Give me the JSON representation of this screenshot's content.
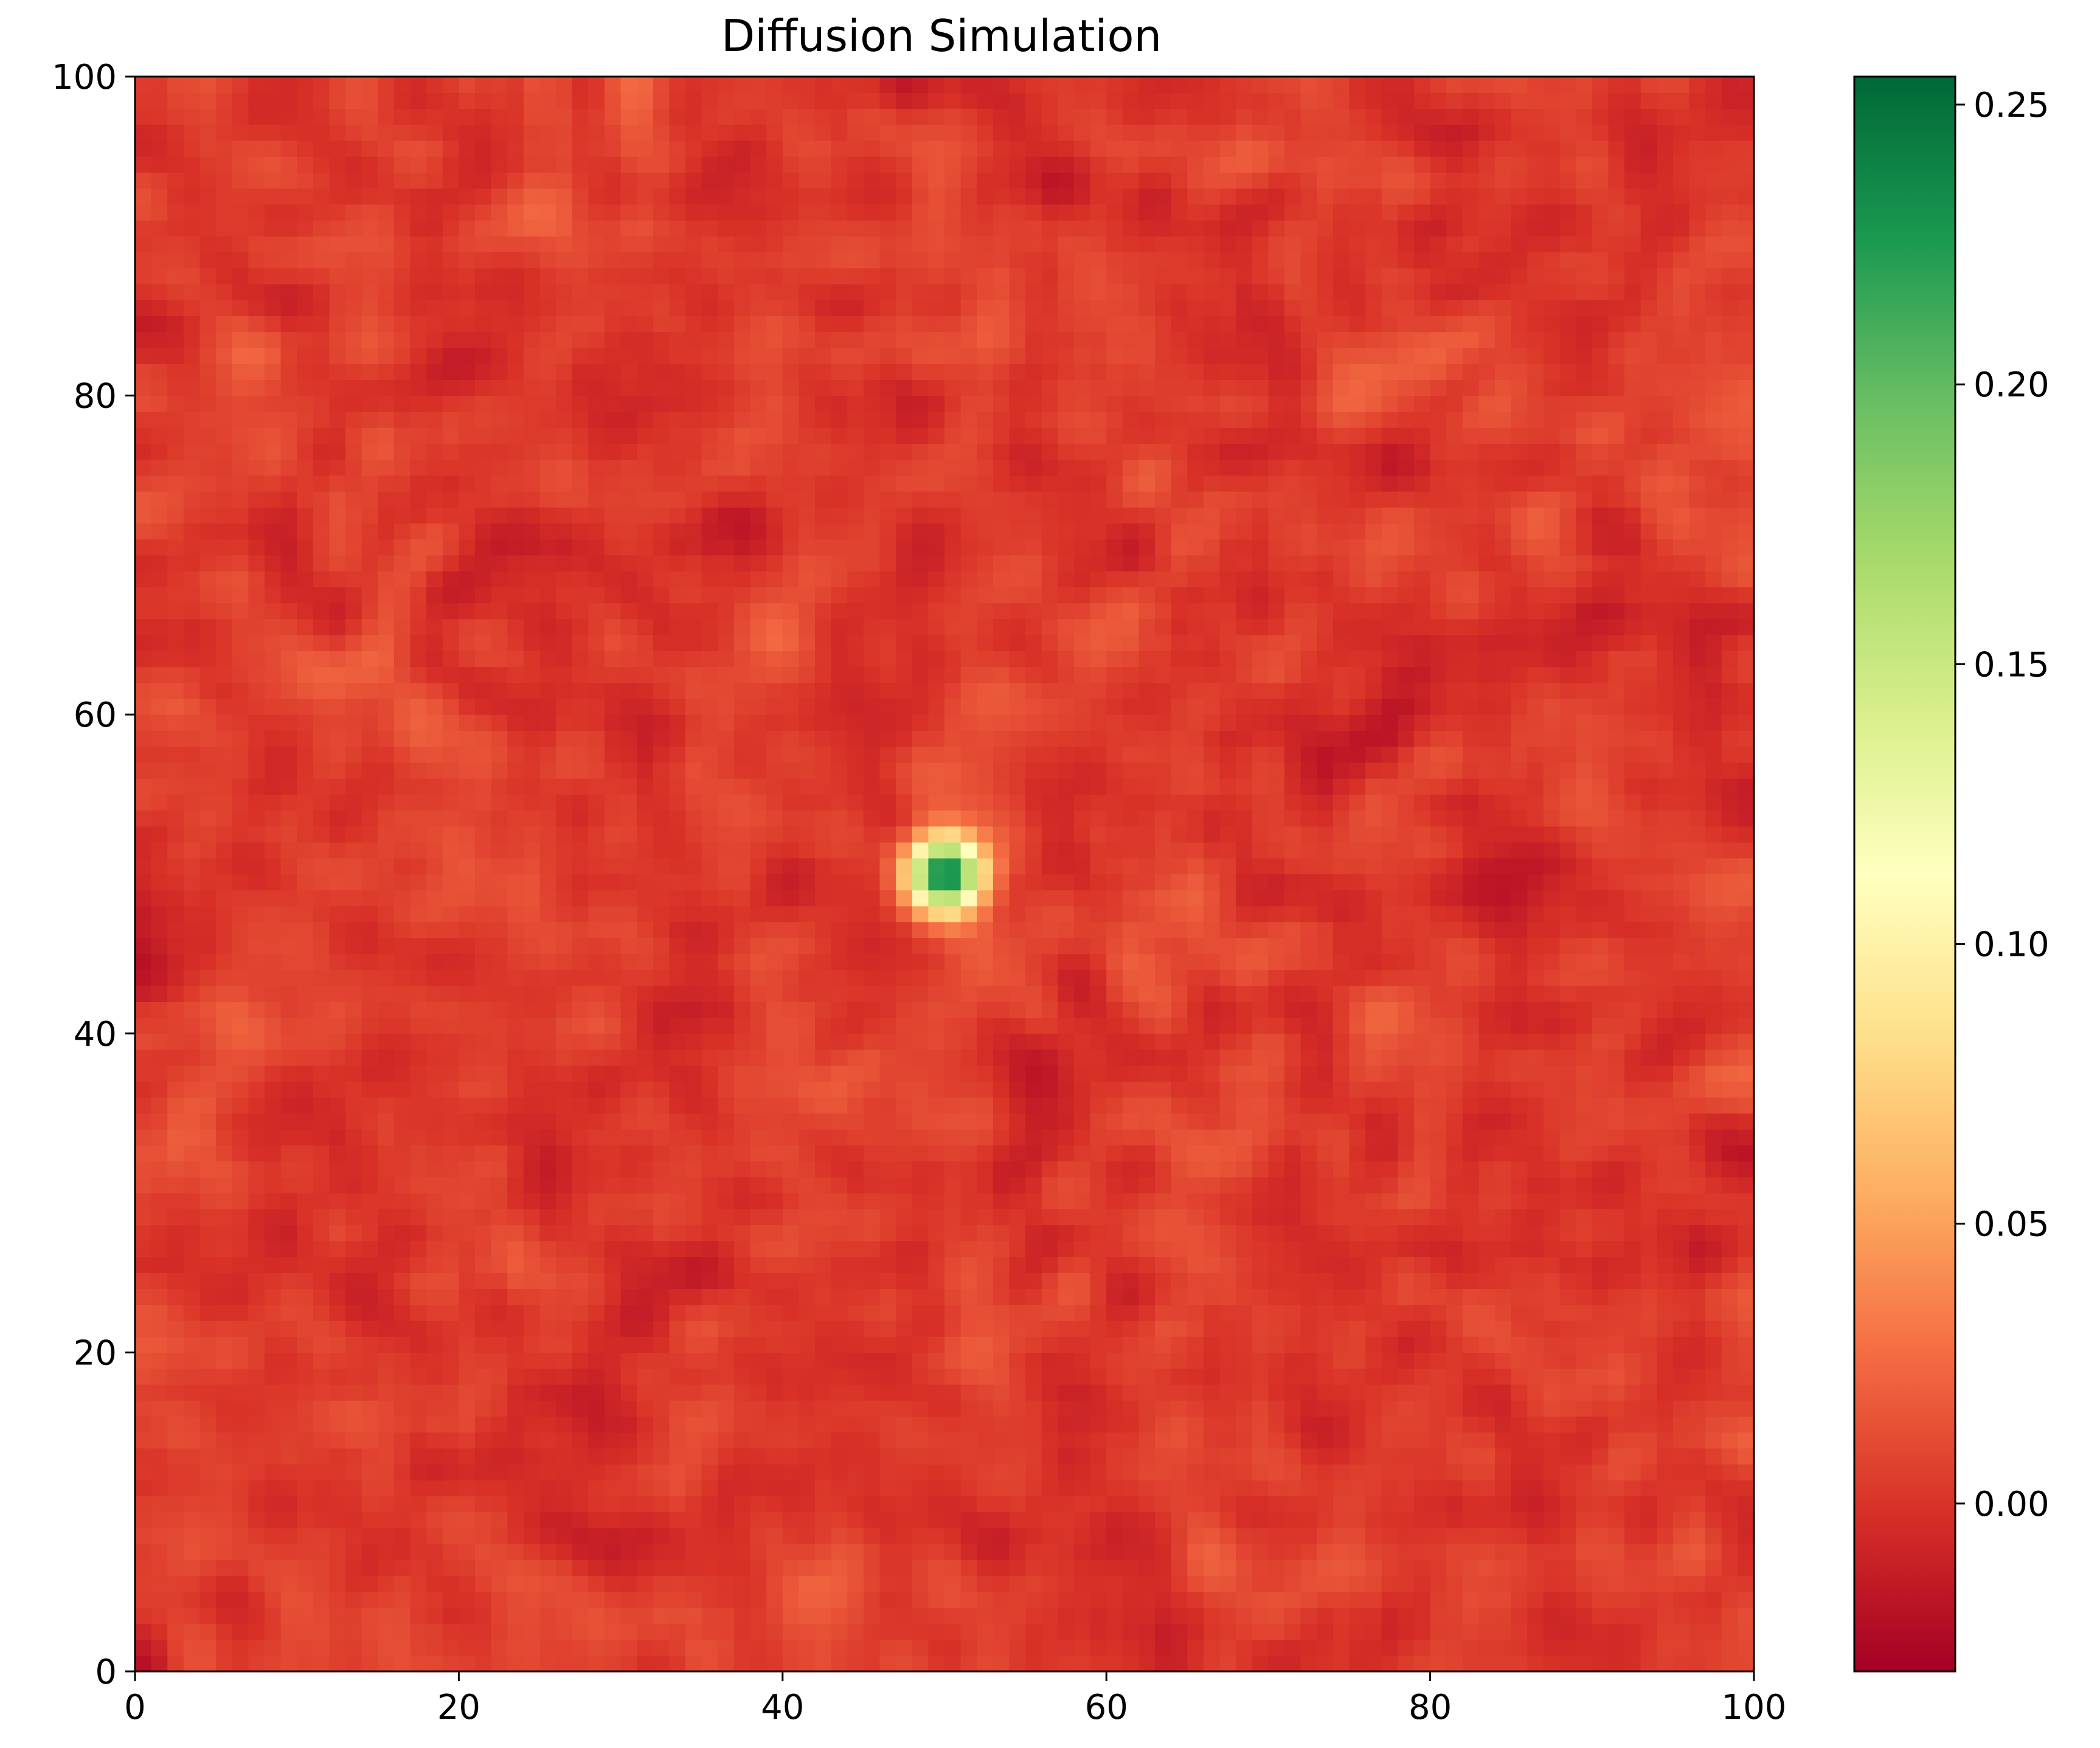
{
  "chart_data": {
    "type": "heatmap",
    "title": "Diffusion Simulation",
    "xlabel": "",
    "ylabel": "",
    "xlim": [
      0,
      100
    ],
    "ylim": [
      0,
      100
    ],
    "x_ticks": [
      0,
      20,
      40,
      60,
      80,
      100
    ],
    "y_ticks": [
      0,
      20,
      40,
      60,
      80,
      100
    ],
    "x_tick_labels": [
      "0",
      "20",
      "40",
      "60",
      "80",
      "100"
    ],
    "y_tick_labels": [
      "0",
      "20",
      "40",
      "60",
      "80",
      "100"
    ],
    "colormap": "RdYlGn",
    "colormap_stops": [
      "#a50026",
      "#d73027",
      "#f46d43",
      "#fdae61",
      "#fee08b",
      "#ffffbf",
      "#d9ef8b",
      "#a6d96a",
      "#66bd63",
      "#1a9850",
      "#006837"
    ],
    "value_range": [
      -0.03,
      0.255
    ],
    "colorbar_ticks": [
      0.0,
      0.05,
      0.1,
      0.15,
      0.2,
      0.25
    ],
    "colorbar_tick_labels": [
      "0.00",
      "0.05",
      "0.10",
      "0.15",
      "0.20",
      "0.25"
    ],
    "background_value_range": [
      -0.02,
      0.025
    ],
    "peak": {
      "x": 50,
      "y": 50,
      "value": 0.25,
      "width": 1.6
    },
    "grid": false,
    "legend": "colorbar-right"
  }
}
